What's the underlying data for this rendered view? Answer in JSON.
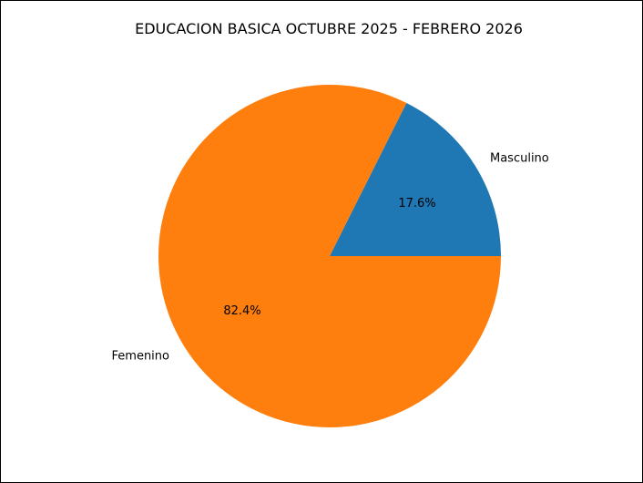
{
  "chart_data": {
    "type": "pie",
    "title": "EDUCACION BASICA OCTUBRE 2025 - FEBRERO 2026",
    "slices": [
      {
        "label": "Masculino",
        "value": 17.6,
        "pct_label": "17.6%",
        "color": "#1f77b4"
      },
      {
        "label": "Femenino",
        "value": 82.4,
        "pct_label": "82.4%",
        "color": "#ff7f0e"
      }
    ],
    "start_angle_deg": 0,
    "direction": "counterclockwise",
    "legend": "none"
  }
}
